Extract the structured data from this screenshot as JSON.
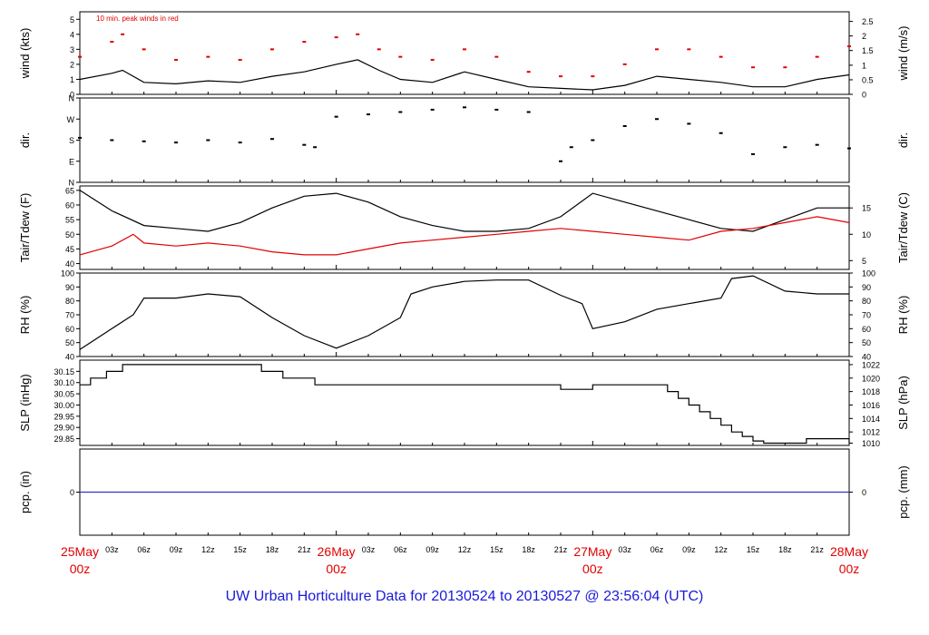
{
  "footer_title": "UW Urban Horticulture Data for 20130524  to  20130527 @ 23:56:04  (UTC)",
  "colors": {
    "axis": "#000000",
    "red": "#e00000",
    "blue": "#1a1adb",
    "zero_line": "#3333cc"
  },
  "chart_data": [
    {
      "id": "wind",
      "type": "line",
      "ylabel": "wind (kts)",
      "ylabel_right": "wind (m/s)",
      "annotation": "10 min. peak winds in red",
      "ylim": [
        0,
        5.5
      ],
      "yticks": [
        0,
        1,
        2,
        3,
        4,
        5
      ],
      "yticks_right": [
        {
          "label": "0",
          "value": 0
        },
        {
          "label": "0.5",
          "value": 0.97
        },
        {
          "label": "1",
          "value": 1.94
        },
        {
          "label": "1.5",
          "value": 2.92
        },
        {
          "label": "2",
          "value": 3.89
        },
        {
          "label": "2.5",
          "value": 4.86
        }
      ],
      "series": [
        {
          "color": "#000000",
          "x": [
            0,
            3,
            4,
            6,
            9,
            12,
            15,
            18,
            21,
            24,
            26,
            28,
            30,
            33,
            36,
            39,
            42,
            45,
            48,
            51,
            54,
            57,
            60,
            63,
            66,
            69,
            72
          ],
          "y": [
            1.0,
            1.4,
            1.6,
            0.8,
            0.7,
            0.9,
            0.8,
            1.2,
            1.5,
            2.0,
            2.3,
            1.6,
            1.0,
            0.8,
            1.5,
            1.0,
            0.5,
            0.4,
            0.3,
            0.6,
            1.2,
            1.0,
            0.8,
            0.5,
            0.5,
            1.0,
            1.3
          ]
        },
        {
          "color": "#e00000",
          "style": "dots",
          "x": [
            0,
            3,
            4,
            6,
            9,
            12,
            15,
            18,
            21,
            24,
            26,
            28,
            30,
            33,
            36,
            39,
            42,
            45,
            48,
            51,
            54,
            57,
            60,
            63,
            66,
            69,
            72
          ],
          "y": [
            2.5,
            3.5,
            4.0,
            3.0,
            2.3,
            2.5,
            2.3,
            3.0,
            3.5,
            3.8,
            4.0,
            3.0,
            2.5,
            2.3,
            3.0,
            2.5,
            1.5,
            1.2,
            1.2,
            2.0,
            3.0,
            3.0,
            2.5,
            1.8,
            1.8,
            2.5,
            3.2
          ]
        }
      ]
    },
    {
      "id": "dir",
      "type": "scatter",
      "ylabel": "dir.",
      "ylabel_right": "dir.",
      "ylim": [
        0,
        360
      ],
      "yticks": [
        {
          "label": "N",
          "value": 0
        },
        {
          "label": "E",
          "value": 90
        },
        {
          "label": "S",
          "value": 180
        },
        {
          "label": "W",
          "value": 270
        },
        {
          "label": "N",
          "value": 360
        }
      ],
      "series": [
        {
          "color": "#000000",
          "x": [
            0,
            3,
            6,
            9,
            12,
            15,
            18,
            21,
            22,
            24,
            27,
            30,
            33,
            36,
            39,
            42,
            45,
            46,
            48,
            51,
            54,
            57,
            60,
            63,
            66,
            69,
            72
          ],
          "y": [
            190,
            180,
            175,
            170,
            180,
            170,
            185,
            160,
            150,
            280,
            290,
            300,
            310,
            320,
            310,
            300,
            90,
            150,
            180,
            240,
            270,
            250,
            210,
            120,
            150,
            160,
            145
          ]
        }
      ]
    },
    {
      "id": "temp",
      "type": "line",
      "ylabel": "Tair/Tdew (F)",
      "ylabel_right": "Tair/Tdew (C)",
      "ylim": [
        38,
        66.5
      ],
      "yticks": [
        40,
        45,
        50,
        55,
        60,
        65
      ],
      "yticks_right": [
        {
          "label": "5",
          "value": 41
        },
        {
          "label": "10",
          "value": 50
        },
        {
          "label": "15",
          "value": 59
        }
      ],
      "series": [
        {
          "color": "#000000",
          "x": [
            0,
            3,
            6,
            9,
            12,
            15,
            18,
            21,
            24,
            27,
            30,
            33,
            36,
            39,
            42,
            45,
            48,
            51,
            54,
            57,
            60,
            63,
            66,
            69,
            72
          ],
          "y": [
            65,
            58,
            53,
            52,
            51,
            54,
            59,
            63,
            64,
            61,
            56,
            53,
            51,
            51,
            52,
            56,
            64,
            61,
            58,
            55,
            52,
            51,
            55,
            59,
            59
          ]
        },
        {
          "color": "#e00000",
          "x": [
            0,
            3,
            5,
            6,
            9,
            12,
            15,
            18,
            21,
            24,
            27,
            30,
            33,
            36,
            39,
            42,
            45,
            48,
            51,
            54,
            57,
            60,
            63,
            66,
            69,
            72
          ],
          "y": [
            43,
            46,
            50,
            47,
            46,
            47,
            46,
            44,
            43,
            43,
            45,
            47,
            48,
            49,
            50,
            51,
            52,
            51,
            50,
            49,
            48,
            51,
            52,
            54,
            56,
            54
          ]
        }
      ]
    },
    {
      "id": "rh",
      "type": "line",
      "ylabel": "RH (%)",
      "ylabel_right": "RH (%)",
      "ylim": [
        40,
        100
      ],
      "yticks": [
        40,
        50,
        60,
        70,
        80,
        90,
        100
      ],
      "yticks_right": [
        {
          "label": "40",
          "value": 40
        },
        {
          "label": "50",
          "value": 50
        },
        {
          "label": "60",
          "value": 60
        },
        {
          "label": "70",
          "value": 70
        },
        {
          "label": "80",
          "value": 80
        },
        {
          "label": "90",
          "value": 90
        },
        {
          "label": "100",
          "value": 100
        }
      ],
      "series": [
        {
          "color": "#000000",
          "x": [
            0,
            3,
            5,
            6,
            9,
            12,
            15,
            18,
            21,
            24,
            27,
            30,
            31,
            33,
            36,
            39,
            42,
            45,
            47,
            48,
            51,
            54,
            57,
            60,
            61,
            63,
            66,
            69,
            72
          ],
          "y": [
            45,
            60,
            70,
            82,
            82,
            85,
            83,
            68,
            55,
            46,
            55,
            68,
            85,
            90,
            94,
            95,
            95,
            84,
            78,
            60,
            65,
            74,
            78,
            82,
            96,
            98,
            87,
            85,
            85
          ]
        }
      ]
    },
    {
      "id": "slp",
      "type": "line",
      "step": true,
      "ylabel": "SLP (inHg)",
      "ylabel_right": "SLP (hPa)",
      "ylim": [
        29.82,
        30.2
      ],
      "yticks": [
        "29.85",
        "29.90",
        "29.95",
        "30.00",
        "30.05",
        "30.10",
        "30.15"
      ],
      "yticks_right": [
        {
          "label": "1010",
          "value": 29.83
        },
        {
          "label": "1012",
          "value": 29.88
        },
        {
          "label": "1014",
          "value": 29.94
        },
        {
          "label": "1016",
          "value": 30.0
        },
        {
          "label": "1018",
          "value": 30.06
        },
        {
          "label": "1020",
          "value": 30.12
        },
        {
          "label": "1022",
          "value": 30.18
        }
      ],
      "series": [
        {
          "color": "#000000",
          "x": [
            0,
            1,
            2.5,
            4,
            17,
            19,
            22,
            27,
            32,
            40,
            45,
            48,
            53,
            55,
            56,
            57,
            58,
            59,
            60,
            61,
            62,
            63,
            64,
            65,
            66,
            67,
            68,
            70,
            72
          ],
          "y": [
            30.09,
            30.12,
            30.15,
            30.18,
            30.15,
            30.12,
            30.09,
            30.09,
            30.09,
            30.09,
            30.07,
            30.09,
            30.09,
            30.06,
            30.03,
            30.0,
            29.97,
            29.94,
            29.91,
            29.88,
            29.86,
            29.84,
            29.83,
            29.83,
            29.83,
            29.83,
            29.85,
            29.85,
            29.83
          ]
        }
      ]
    },
    {
      "id": "pcp",
      "type": "line",
      "ylabel": "pcp. (in)",
      "ylabel_right": "pcp. (mm)",
      "ylim": [
        -1,
        1
      ],
      "yticks": [
        "0"
      ],
      "yticks_right": [
        {
          "label": "0",
          "value": 0
        }
      ],
      "series": [
        {
          "color": "#3333cc",
          "x": [
            0,
            72
          ],
          "y": [
            0,
            0
          ]
        }
      ]
    }
  ],
  "x_axis": {
    "xlim": [
      0,
      72
    ],
    "hour_ticks": [
      {
        "x": 3,
        "label": "03z"
      },
      {
        "x": 6,
        "label": "06z"
      },
      {
        "x": 9,
        "label": "09z"
      },
      {
        "x": 12,
        "label": "12z"
      },
      {
        "x": 15,
        "label": "15z"
      },
      {
        "x": 18,
        "label": "18z"
      },
      {
        "x": 21,
        "label": "21z"
      },
      {
        "x": 27,
        "label": "03z"
      },
      {
        "x": 30,
        "label": "06z"
      },
      {
        "x": 33,
        "label": "09z"
      },
      {
        "x": 36,
        "label": "12z"
      },
      {
        "x": 39,
        "label": "15z"
      },
      {
        "x": 42,
        "label": "18z"
      },
      {
        "x": 45,
        "label": "21z"
      },
      {
        "x": 51,
        "label": "03z"
      },
      {
        "x": 54,
        "label": "06z"
      },
      {
        "x": 57,
        "label": "09z"
      },
      {
        "x": 60,
        "label": "12z"
      },
      {
        "x": 63,
        "label": "15z"
      },
      {
        "x": 66,
        "label": "18z"
      },
      {
        "x": 69,
        "label": "21z"
      }
    ],
    "day_ticks": [
      {
        "x": 0,
        "label": "25May",
        "sub": "00z"
      },
      {
        "x": 24,
        "label": "26May",
        "sub": "00z"
      },
      {
        "x": 48,
        "label": "27May",
        "sub": "00z"
      },
      {
        "x": 72,
        "label": "28May",
        "sub": "00z"
      }
    ]
  }
}
